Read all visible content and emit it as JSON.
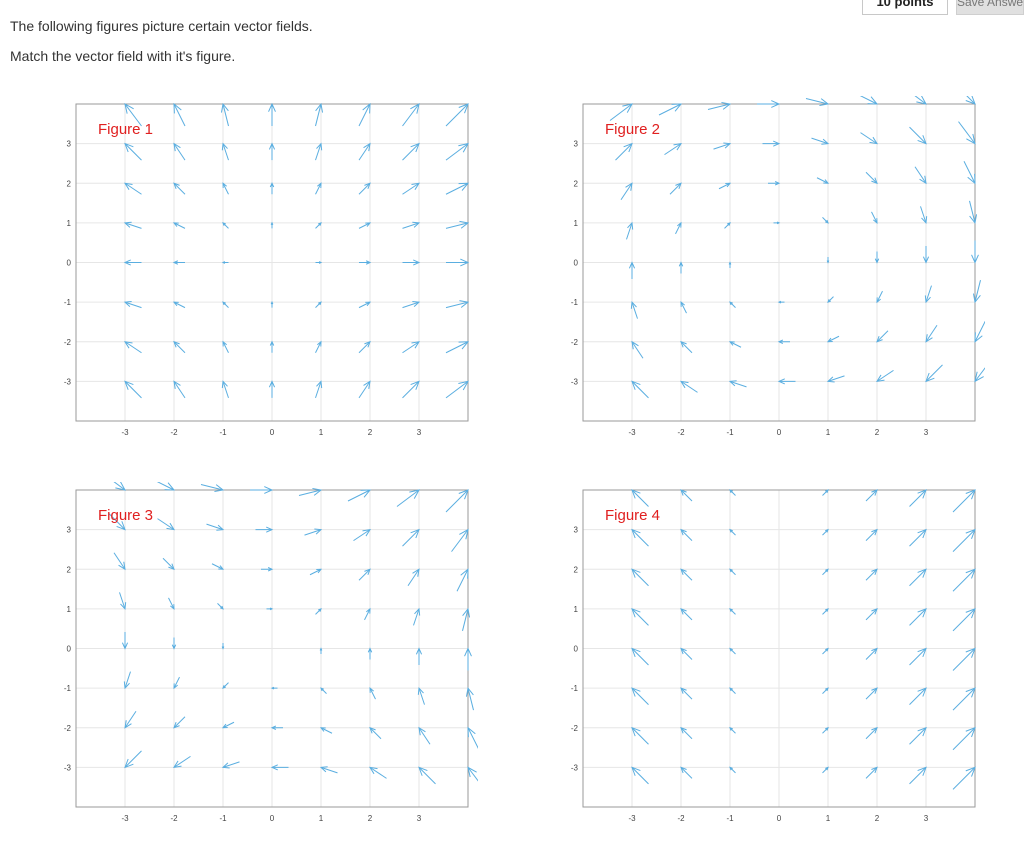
{
  "header": {
    "points_label": "10 points",
    "save_label": "Save Answer"
  },
  "question": {
    "line1": "The following figures picture certain vector fields.",
    "line2": "Match the vector field with it's figure."
  },
  "colors": {
    "arrow": "#5aaee0",
    "grid": "#e6e6e6",
    "frame": "#9a9a9a",
    "figure_label": "#e02020"
  },
  "figures": [
    {
      "label": "Figure 1",
      "xticks": [
        "-3",
        "-2",
        "-1",
        "0",
        "1",
        "2",
        "3"
      ],
      "yticks": [
        "3",
        "2",
        "1",
        "0",
        "-1",
        "-2",
        "-3"
      ],
      "field": "x_abs_y"
    },
    {
      "label": "Figure 2",
      "xticks": [
        "-3",
        "-2",
        "-1",
        "0",
        "1",
        "2",
        "3"
      ],
      "yticks": [
        "3",
        "2",
        "1",
        "0",
        "-1",
        "-2",
        "-3"
      ],
      "field": "y_neg_x"
    },
    {
      "label": "Figure 3",
      "xticks": [
        "-3",
        "-2",
        "-1",
        "0",
        "1",
        "2",
        "3"
      ],
      "yticks": [
        "3",
        "2",
        "1",
        "0",
        "-1",
        "-2",
        "-3"
      ],
      "field": "y_x"
    },
    {
      "label": "Figure 4",
      "xticks": [
        "-3",
        "-2",
        "-1",
        "0",
        "1",
        "2",
        "3"
      ],
      "yticks": [
        "3",
        "2",
        "1",
        "0",
        "-1",
        "-2",
        "-3"
      ],
      "field": "x_abs_x"
    }
  ]
}
